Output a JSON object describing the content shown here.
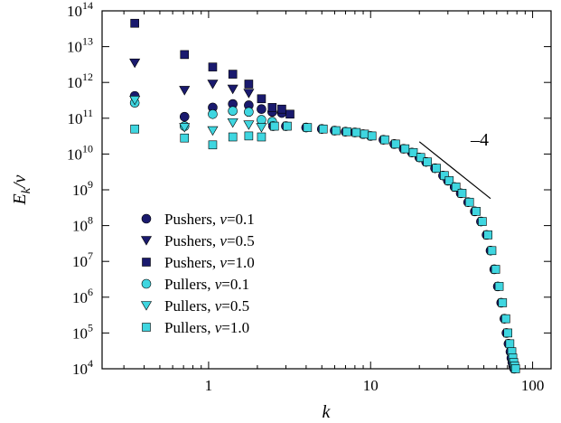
{
  "chart_data": {
    "type": "scatter",
    "title": "",
    "xlabel": "k",
    "ylabel": "E_k/v",
    "xscale": "log",
    "yscale": "log",
    "xlim": [
      0.22,
      130
    ],
    "ylim": [
      10000,
      100000000000000
    ],
    "xticks": [
      {
        "value": 1,
        "label": "1"
      },
      {
        "value": 10,
        "label": "10"
      },
      {
        "value": 100,
        "label": "100"
      }
    ],
    "yticks": [
      {
        "value": 10000,
        "base": "10",
        "exp": "4"
      },
      {
        "value": 100000,
        "base": "10",
        "exp": "5"
      },
      {
        "value": 1000000,
        "base": "10",
        "exp": "6"
      },
      {
        "value": 10000000,
        "base": "10",
        "exp": "7"
      },
      {
        "value": 100000000,
        "base": "10",
        "exp": "8"
      },
      {
        "value": 1000000000,
        "base": "10",
        "exp": "9"
      },
      {
        "value": 10000000000,
        "base": "10",
        "exp": "10"
      },
      {
        "value": 100000000000,
        "base": "10",
        "exp": "11"
      },
      {
        "value": 1000000000000,
        "base": "10",
        "exp": "12"
      },
      {
        "value": 10000000000000,
        "base": "10",
        "exp": "13"
      },
      {
        "value": 100000000000000,
        "base": "10",
        "exp": "14"
      }
    ],
    "grid": false,
    "legend_position": "lower-left",
    "annotation": {
      "text": "–4",
      "type": "slope-line",
      "x": [
        20,
        55
      ],
      "y": [
        22000000000,
        570000000
      ]
    },
    "colors": {
      "pushers": "#1a1a6e",
      "pullers": "#3fd6e0",
      "edge": "#000000"
    },
    "series": [
      {
        "name": "Pushers, v=0.1",
        "family": "Pushers",
        "v": "0.1",
        "marker": "circle",
        "x": [
          0.35,
          0.71,
          1.06,
          1.41,
          1.77,
          2.12,
          2.47,
          2.83
        ],
        "y": [
          420000000000,
          110000000000,
          200000000000,
          250000000000,
          230000000000,
          180000000000,
          150000000000,
          140000000000
        ]
      },
      {
        "name": "Pushers, v=0.5",
        "family": "Pushers",
        "v": "0.5",
        "marker": "triangle",
        "x": [
          0.35,
          0.71,
          1.06,
          1.41,
          1.77
        ],
        "y": [
          3500000000000,
          600000000000,
          900000000000,
          650000000000,
          500000000000
        ]
      },
      {
        "name": "Pushers, v=1.0",
        "family": "Pushers",
        "v": "1.0",
        "marker": "square",
        "x": [
          0.35,
          0.71,
          1.06,
          1.41,
          1.77,
          2.12,
          2.47,
          2.83,
          3.18
        ],
        "y": [
          45000000000000,
          6000000000000,
          2700000000000,
          1700000000000,
          900000000000,
          350000000000,
          200000000000,
          180000000000,
          130000000000
        ]
      },
      {
        "name": "Pullers, v=0.1",
        "family": "Pullers",
        "v": "0.1",
        "marker": "circle",
        "x": [
          0.35,
          0.71,
          1.06,
          1.41,
          1.77,
          2.12,
          2.47
        ],
        "y": [
          270000000000,
          60000000000,
          130000000000,
          160000000000,
          150000000000,
          90000000000,
          80000000000
        ]
      },
      {
        "name": "Pullers, v=0.5",
        "family": "Pullers",
        "v": "0.5",
        "marker": "triangle",
        "x": [
          0.35,
          0.71,
          1.06,
          1.41,
          1.77,
          2.12
        ],
        "y": [
          320000000000,
          55000000000,
          45000000000,
          75000000000,
          65000000000,
          55000000000
        ]
      },
      {
        "name": "Pullers, v=1.0",
        "family": "Pullers",
        "v": "1.0",
        "marker": "square",
        "x": [
          0.35,
          0.71,
          1.06,
          1.41,
          1.77,
          2.12
        ],
        "y": [
          50000000000,
          28000000000,
          18000000000,
          30000000000,
          32000000000,
          30000000000
        ]
      }
    ],
    "curve_points": {
      "marker": "square",
      "x": [
        2.5,
        3,
        4,
        5,
        6,
        7,
        8,
        9,
        10,
        12,
        14,
        16,
        18,
        20,
        22,
        25,
        28,
        30,
        33,
        36,
        40,
        44,
        48,
        52,
        55,
        58,
        61,
        64,
        67,
        69,
        71,
        73,
        74,
        75,
        76,
        77
      ],
      "y": [
        60000000000,
        60000000000,
        55000000000,
        50000000000,
        45000000000,
        42000000000,
        40000000000,
        36000000000,
        32000000000,
        25000000000,
        19000000000,
        14000000000,
        11000000000,
        8000000000,
        6000000000,
        4000000000,
        2500000000,
        1800000000,
        1200000000,
        800000000,
        450000000,
        250000000,
        130000000,
        55000000,
        20000000,
        6000000,
        2000000,
        700000,
        250000,
        100000,
        50000,
        30000,
        20000,
        15000,
        12000,
        10000
      ]
    }
  }
}
